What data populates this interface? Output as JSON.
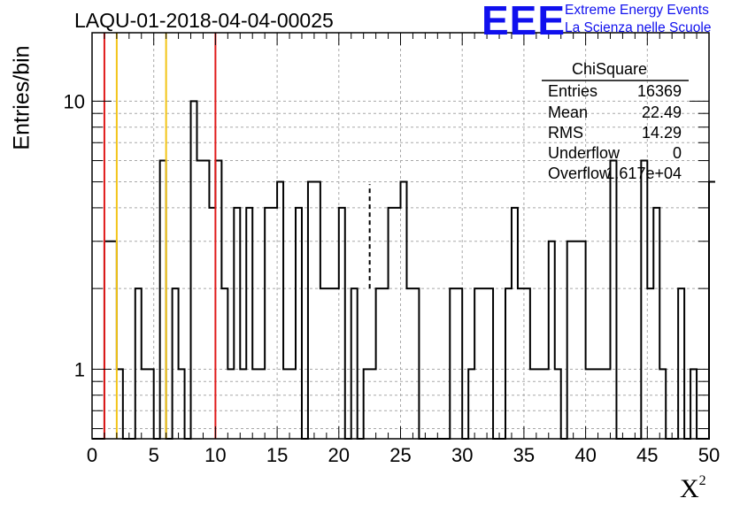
{
  "title": "LAQU-01-2018-04-04-00025",
  "logo": {
    "mark": "EEE",
    "line1": "Extreme Energy Events",
    "line2": "La Scienza nelle Scuole",
    "color": "#1010ee"
  },
  "stats": {
    "name": "ChiSquare",
    "rows": [
      {
        "label": "Entries",
        "value": "16369"
      },
      {
        "label": "Mean",
        "value": "22.49"
      },
      {
        "label": "RMS",
        "value": "14.29"
      },
      {
        "label": "Underflow",
        "value": "0"
      },
      {
        "label": "Overflow",
        "value": "1.617e+04"
      }
    ]
  },
  "chart_data": {
    "type": "histogram",
    "title": "LAQU-01-2018-04-04-00025",
    "xlabel": "X",
    "xlabel_sup": "2",
    "ylabel": "Entries/bin",
    "xlim": [
      0,
      50
    ],
    "ylim_log": [
      0.55,
      18
    ],
    "yscale": "log",
    "grid": true,
    "bin_width": 0.5,
    "x_ticks": [
      0,
      5,
      10,
      15,
      20,
      25,
      30,
      35,
      40,
      45,
      50
    ],
    "y_ticks": [
      1,
      10
    ],
    "counts": [
      0,
      0,
      3,
      3,
      1,
      0,
      0,
      2,
      1,
      1,
      0,
      6,
      0,
      2,
      1,
      0,
      10,
      6,
      6,
      4,
      6,
      2,
      1,
      4,
      1,
      4,
      1,
      1,
      4,
      4,
      5,
      1,
      1,
      4,
      0,
      5,
      5,
      2,
      2,
      2,
      4,
      0,
      2,
      0,
      1,
      1,
      2,
      2,
      4,
      4,
      5,
      2,
      2,
      0,
      0,
      0,
      0,
      0,
      2,
      2,
      0,
      1,
      2,
      2,
      2,
      0,
      0,
      2,
      4,
      2,
      2,
      1,
      1,
      1,
      3,
      1,
      0,
      3,
      3,
      3,
      1,
      1,
      1,
      1,
      6,
      0,
      0,
      0,
      0,
      6,
      2,
      4,
      1,
      0,
      0,
      2,
      0,
      1,
      0,
      0,
      5
    ],
    "reference_lines": [
      {
        "x": 1,
        "color": "#e01a1a",
        "style": "solid"
      },
      {
        "x": 2,
        "color": "#f2c417",
        "style": "solid"
      },
      {
        "x": 6,
        "color": "#f2c417",
        "style": "solid"
      },
      {
        "x": 10,
        "color": "#e01a1a",
        "style": "solid"
      },
      {
        "x": 22.5,
        "color": "#000000",
        "style": "dashed",
        "ymax": 4.9
      }
    ]
  }
}
